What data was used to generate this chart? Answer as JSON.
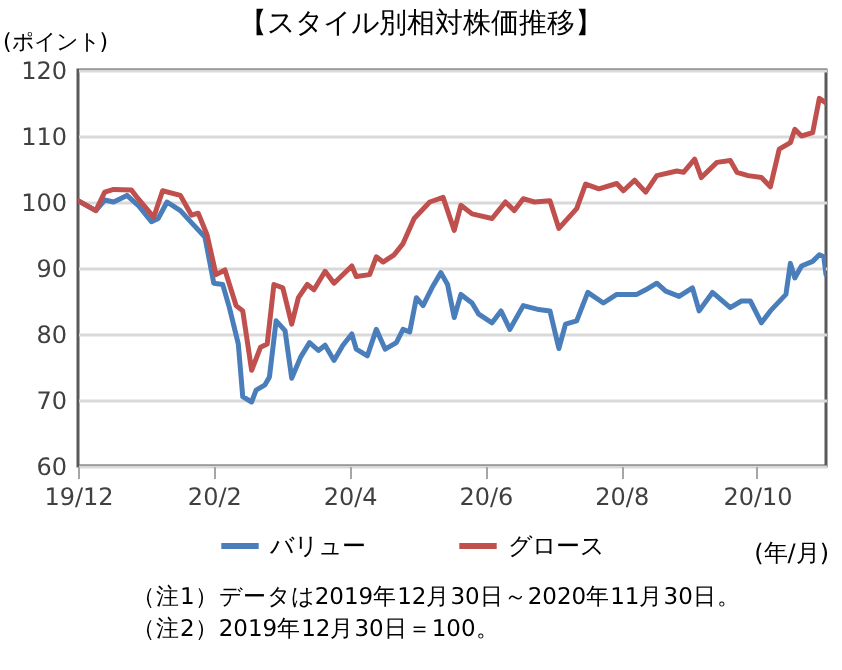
{
  "chart_data": {
    "type": "line",
    "title": "【スタイル別相対株価推移】",
    "ylabel": "(ポイント)",
    "xlabel": "(年/月)",
    "xlim": [
      "2019-12-30",
      "2020-11-30"
    ],
    "xticks": [
      {
        "value": "2019-12-30",
        "label": "19/12"
      },
      {
        "value": "2020-02-29",
        "label": "20/2"
      },
      {
        "value": "2020-04-30",
        "label": "20/4"
      },
      {
        "value": "2020-06-30",
        "label": "20/6"
      },
      {
        "value": "2020-08-30",
        "label": "20/8"
      },
      {
        "value": "2020-10-30",
        "label": "20/10"
      }
    ],
    "ylim": [
      60,
      120
    ],
    "yticks": [
      60,
      70,
      80,
      90,
      100,
      110,
      120
    ],
    "grid": "y",
    "legend": "bottom",
    "series": [
      {
        "name": "バリュー",
        "color": "#4a7ebb",
        "x": [
          "2019-12-30",
          "2020-01-07",
          "2020-01-11",
          "2020-01-15",
          "2020-01-21",
          "2020-01-26",
          "2020-02-01",
          "2020-02-04",
          "2020-02-08",
          "2020-02-14",
          "2020-02-20",
          "2020-02-25",
          "2020-02-29",
          "2020-03-04",
          "2020-03-07",
          "2020-03-11",
          "2020-03-13",
          "2020-03-17",
          "2020-03-19",
          "2020-03-23",
          "2020-03-25",
          "2020-03-28",
          "2020-04-01",
          "2020-04-04",
          "2020-04-08",
          "2020-04-12",
          "2020-04-16",
          "2020-04-19",
          "2020-04-23",
          "2020-04-27",
          "2020-05-01",
          "2020-05-03",
          "2020-05-08",
          "2020-05-12",
          "2020-05-16",
          "2020-05-21",
          "2020-05-24",
          "2020-05-27",
          "2020-05-30",
          "2020-06-02",
          "2020-06-06",
          "2020-06-10",
          "2020-06-13",
          "2020-06-16",
          "2020-06-19",
          "2020-06-24",
          "2020-06-27",
          "2020-07-03",
          "2020-07-07",
          "2020-07-11",
          "2020-07-17",
          "2020-07-24",
          "2020-07-29",
          "2020-08-02",
          "2020-08-05",
          "2020-08-10",
          "2020-08-15",
          "2020-08-22",
          "2020-08-28",
          "2020-09-06",
          "2020-09-10",
          "2020-09-15",
          "2020-09-19",
          "2020-09-25",
          "2020-10-01",
          "2020-10-04",
          "2020-10-10",
          "2020-10-18",
          "2020-10-23",
          "2020-10-27",
          "2020-11-01",
          "2020-11-05",
          "2020-11-12",
          "2020-11-14",
          "2020-11-16",
          "2020-11-19",
          "2020-11-24",
          "2020-11-27",
          "2020-11-29",
          "2020-11-30"
        ],
        "values": [
          100.2,
          98.7,
          100.3,
          100,
          101,
          99.5,
          97,
          97.5,
          100,
          98.7,
          96.5,
          94.7,
          87.7,
          87.5,
          84,
          78.5,
          70.5,
          69.7,
          71.5,
          72.3,
          73.5,
          82,
          80.5,
          73.3,
          76.5,
          78.7,
          77.5,
          78.3,
          76,
          78.3,
          80,
          77.7,
          76.7,
          80.7,
          77.7,
          78.7,
          80.7,
          80.3,
          85.5,
          84.3,
          87,
          89.3,
          87.5,
          82.5,
          86,
          84.7,
          83,
          81.7,
          83.5,
          80.7,
          84.3,
          83.7,
          83.5,
          77.8,
          81.5,
          82,
          86.3,
          84.7,
          86,
          86,
          86.7,
          87.7,
          86.5,
          85.7,
          87,
          83.5,
          86.3,
          84,
          85,
          85,
          81.7,
          83.5,
          86,
          90.7,
          88.5,
          90.3,
          91,
          92,
          91.7,
          89
        ]
      },
      {
        "name": "グロース",
        "color": "#c0504d",
        "x": [
          "2019-12-30",
          "2020-01-07",
          "2020-01-11",
          "2020-01-15",
          "2020-01-23",
          "2020-01-26",
          "2020-02-02",
          "2020-02-06",
          "2020-02-14",
          "2020-02-19",
          "2020-02-22",
          "2020-02-26",
          "2020-03-01",
          "2020-03-05",
          "2020-03-10",
          "2020-03-13",
          "2020-03-17",
          "2020-03-21",
          "2020-03-24",
          "2020-03-27",
          "2020-03-31",
          "2020-04-04",
          "2020-04-07",
          "2020-04-11",
          "2020-04-14",
          "2020-04-19",
          "2020-04-23",
          "2020-05-01",
          "2020-05-03",
          "2020-05-09",
          "2020-05-12",
          "2020-05-15",
          "2020-05-20",
          "2020-05-24",
          "2020-05-29",
          "2020-06-05",
          "2020-06-11",
          "2020-06-16",
          "2020-06-19",
          "2020-06-24",
          "2020-07-03",
          "2020-07-09",
          "2020-07-13",
          "2020-07-17",
          "2020-07-22",
          "2020-07-29",
          "2020-08-02",
          "2020-08-10",
          "2020-08-14",
          "2020-08-20",
          "2020-08-28",
          "2020-08-31",
          "2020-09-05",
          "2020-09-10",
          "2020-09-15",
          "2020-09-24",
          "2020-09-27",
          "2020-10-02",
          "2020-10-05",
          "2020-10-12",
          "2020-10-18",
          "2020-10-21",
          "2020-10-26",
          "2020-11-01",
          "2020-11-05",
          "2020-11-09",
          "2020-11-14",
          "2020-11-16",
          "2020-11-19",
          "2020-11-24",
          "2020-11-27",
          "2020-11-30"
        ],
        "values": [
          100.2,
          98.7,
          101.5,
          101.9,
          101.8,
          100.5,
          97.7,
          101.7,
          101,
          98,
          98.3,
          95,
          89,
          89.7,
          84.3,
          83.5,
          74.5,
          78,
          78.5,
          87.5,
          87,
          81.5,
          85.5,
          87.5,
          86.7,
          89.5,
          87.7,
          90.3,
          88.7,
          89,
          91.7,
          90.9,
          92,
          93.7,
          97.5,
          100,
          100.7,
          95.7,
          99.5,
          98.2,
          97.5,
          100,
          98.7,
          100.5,
          100,
          100.2,
          96,
          99,
          102.7,
          102,
          102.8,
          101.7,
          103.3,
          101.5,
          104,
          104.7,
          104.5,
          106.5,
          103.7,
          106,
          106.3,
          104.5,
          104,
          103.7,
          102.3,
          108,
          109,
          111,
          110,
          110.5,
          115.7,
          115
        ]
      }
    ],
    "annotations": [
      "（注1）データは2019年12月30日～2020年11月30日。",
      "（注2）2019年12月30日＝100。"
    ]
  }
}
